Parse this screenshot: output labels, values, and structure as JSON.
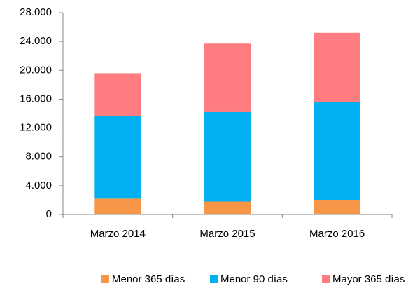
{
  "chart_data": {
    "type": "stacked_bar",
    "categories": [
      "Marzo 2014",
      "Marzo 2015",
      "Marzo 2016"
    ],
    "series": [
      {
        "name": "Menor 365 días",
        "color": "#f79646",
        "values": [
          2200,
          1800,
          2000
        ]
      },
      {
        "name": "Menor 90 días",
        "color": "#00b0f0",
        "values": [
          11500,
          12400,
          13600
        ]
      },
      {
        "name": "Mayor 365 días",
        "color": "#ff7c80",
        "values": [
          5900,
          9500,
          9600
        ]
      }
    ],
    "ylim": [
      0,
      28000
    ],
    "yticks": [
      0,
      {
        "value": 4000,
        "label": "4.000"
      },
      {
        "value": 8000,
        "label": "8.000"
      },
      {
        "value": 12000,
        "label": "12.000"
      },
      {
        "value": 16000,
        "label": "16.000"
      },
      {
        "value": 20000,
        "label": "20.000"
      },
      {
        "value": 24000,
        "label": "24.000"
      },
      {
        "value": 28000,
        "label": "28.000"
      }
    ],
    "grid": false,
    "legend": "bottom"
  }
}
